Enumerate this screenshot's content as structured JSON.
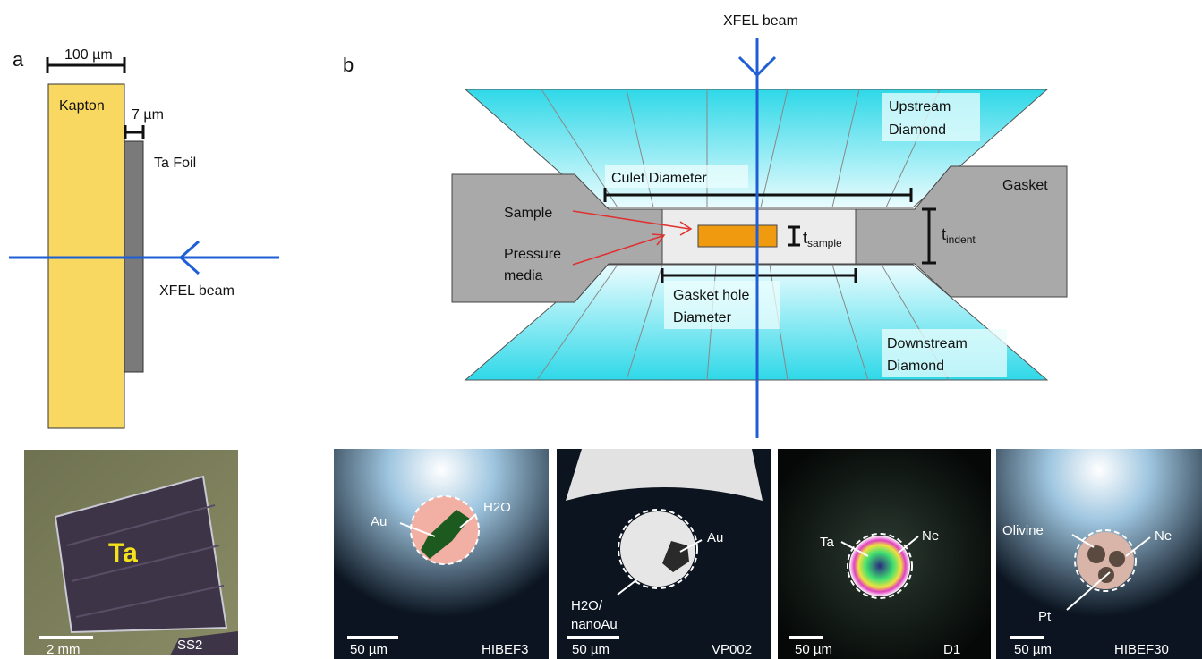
{
  "panel_a": {
    "letter": "a",
    "scale_label": "100 µm",
    "kapton_label": "Kapton",
    "foil_thickness_label": "7 µm",
    "foil_label": "Ta Foil",
    "beam_label": "XFEL beam",
    "photo": {
      "element_label": "Ta",
      "scale_label": "2 mm",
      "sample_id": "SS2"
    }
  },
  "panel_b": {
    "letter": "b",
    "beam_label": "XFEL beam",
    "upstream_label": [
      "Upstream",
      "Diamond"
    ],
    "downstream_label": [
      "Downstream",
      "Diamond"
    ],
    "gasket_label": "Gasket",
    "culet_label": "Culet Diameter",
    "gasket_hole_label": [
      "Gasket hole",
      "Diameter"
    ],
    "sample_label": "Sample",
    "pressure_media_label": [
      "Pressure",
      "media"
    ],
    "t_sample_label": {
      "base": "t",
      "sub": "sample"
    },
    "t_indent_label": {
      "base": "t",
      "sub": "indent"
    }
  },
  "micrographs": [
    {
      "id": "HIBEF3",
      "scale_label": "50 µm",
      "annotations": [
        "Au",
        "H2O"
      ]
    },
    {
      "id": "VP002",
      "scale_label": "50 µm",
      "annotations": [
        "Au",
        "H2O/",
        "nanoAu"
      ]
    },
    {
      "id": "D1",
      "scale_label": "50 µm",
      "annotations": [
        "Ta",
        "Ne"
      ]
    },
    {
      "id": "HIBEF30",
      "scale_label": "50 µm",
      "annotations": [
        "Olivine",
        "Ne",
        "Pt"
      ]
    }
  ],
  "colors": {
    "kapton": "#f9d862",
    "foil": "#7a7a7a",
    "beam": "#1f5fd6",
    "diamond": "#35e0ee",
    "gasket": "#a9a9a9",
    "sample": "#f09a10",
    "arrow": "#e03030"
  }
}
